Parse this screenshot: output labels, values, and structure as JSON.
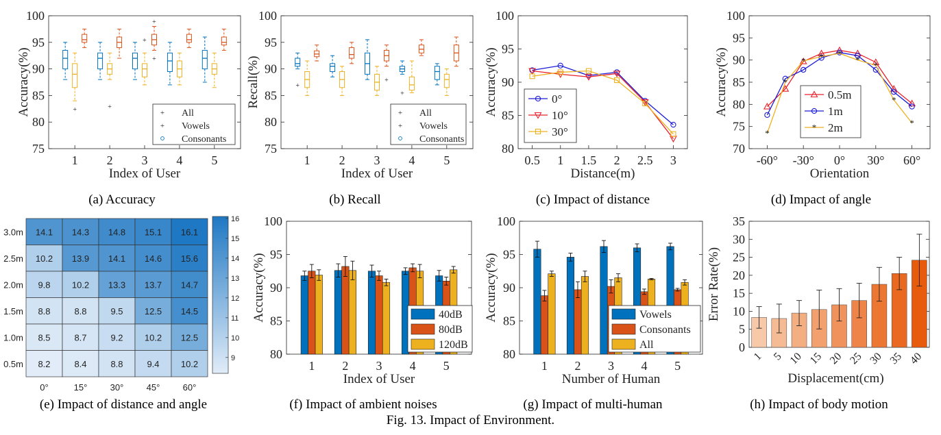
{
  "figure_caption": "Fig. 13.  Impact of Environment.",
  "colors": {
    "blue": "#0072BD",
    "orange": "#D95319",
    "yellow": "#EDB120",
    "red_line": "#E8202A",
    "blue_line": "#1B1BD6",
    "gold_line": "#EDB120",
    "heat_low": "#e1ecf8",
    "heat_high": "#1f78c3",
    "bar_light": "#f7c9a9",
    "bar_dark": "#e85b0c"
  },
  "chart_data": [
    {
      "id": "a",
      "type": "boxplot",
      "panel_title": "(a)  Accuracy",
      "xlabel": "Index of User",
      "ylabel": "Accuracy(%)",
      "ylim": [
        75,
        100
      ],
      "yticks": [
        "75",
        "80",
        "85",
        "90",
        "95",
        "100"
      ],
      "categories": [
        "1",
        "2",
        "3",
        "4",
        "5"
      ],
      "legend": [
        "All",
        "Vowels",
        "Consonants"
      ],
      "series": [
        {
          "name": "Consonants",
          "color": "blue",
          "boxes": [
            {
              "min": 88,
              "q1": 90,
              "med": 92,
              "q3": 93.5,
              "max": 95,
              "outliers": []
            },
            {
              "min": 88,
              "q1": 90,
              "med": 92,
              "q3": 93,
              "max": 95,
              "outliers": []
            },
            {
              "min": 88,
              "q1": 90,
              "med": 92,
              "q3": 93,
              "max": 95,
              "outliers": []
            },
            {
              "min": 87,
              "q1": 89.5,
              "med": 91.5,
              "q3": 93,
              "max": 95,
              "outliers": []
            },
            {
              "min": 87.5,
              "q1": 90,
              "med": 92,
              "q3": 93.5,
              "max": 96,
              "outliers": []
            }
          ]
        },
        {
          "name": "All",
          "color": "yellow",
          "boxes": [
            {
              "min": 84,
              "q1": 86.5,
              "med": 89,
              "q3": 91,
              "max": 93,
              "outliers": [
                82.5
              ]
            },
            {
              "min": 88,
              "q1": 89,
              "med": 90,
              "q3": 91,
              "max": 93,
              "outliers": [
                83
              ]
            },
            {
              "min": 87,
              "q1": 88.5,
              "med": 90,
              "q3": 91,
              "max": 93,
              "outliers": [
                95.5
              ]
            },
            {
              "min": 87,
              "q1": 88.5,
              "med": 90,
              "q3": 91.5,
              "max": 93,
              "outliers": []
            },
            {
              "min": 86.5,
              "q1": 89,
              "med": 90,
              "q3": 91,
              "max": 93,
              "outliers": []
            }
          ]
        },
        {
          "name": "Vowels",
          "color": "orange",
          "boxes": [
            {
              "min": 94,
              "q1": 95,
              "med": 95.5,
              "q3": 96.5,
              "max": 97.5,
              "outliers": []
            },
            {
              "min": 92,
              "q1": 94,
              "med": 95,
              "q3": 96,
              "max": 97.5,
              "outliers": []
            },
            {
              "min": 93.5,
              "q1": 94.5,
              "med": 95.5,
              "q3": 96.5,
              "max": 98,
              "outliers": [
                92,
                99
              ]
            },
            {
              "min": 94,
              "q1": 95,
              "med": 95.5,
              "q3": 96.5,
              "max": 97.5,
              "outliers": []
            },
            {
              "min": 93.5,
              "q1": 94.5,
              "med": 95,
              "q3": 96,
              "max": 97.5,
              "outliers": []
            }
          ]
        }
      ]
    },
    {
      "id": "b",
      "type": "boxplot",
      "panel_title": "(b)  Recall",
      "xlabel": "Index of User",
      "ylabel": "Recall(%)",
      "ylim": [
        75,
        100
      ],
      "yticks": [
        "75",
        "80",
        "85",
        "90",
        "95",
        "100"
      ],
      "categories": [
        "1",
        "2",
        "3",
        "4",
        "5"
      ],
      "legend": [
        "All",
        "Vowels",
        "Consonants"
      ],
      "series": [
        {
          "name": "Consonants",
          "color": "blue",
          "boxes": [
            {
              "min": 90,
              "q1": 90.5,
              "med": 91,
              "q3": 92,
              "max": 93,
              "outliers": [
                87
              ]
            },
            {
              "min": 88.5,
              "q1": 89.5,
              "med": 90.5,
              "q3": 91,
              "max": 92.5,
              "outliers": []
            },
            {
              "min": 88,
              "q1": 89,
              "med": 91,
              "q3": 93,
              "max": 95.5,
              "outliers": []
            },
            {
              "min": 89,
              "q1": 89.5,
              "med": 90,
              "q3": 90.5,
              "max": 91.5,
              "outliers": [
                85.5
              ]
            },
            {
              "min": 87,
              "q1": 88,
              "med": 89.5,
              "q3": 90.5,
              "max": 91,
              "outliers": []
            }
          ]
        },
        {
          "name": "All",
          "color": "yellow",
          "boxes": [
            {
              "min": 85,
              "q1": 86.5,
              "med": 88,
              "q3": 89.5,
              "max": 91.5,
              "outliers": []
            },
            {
              "min": 85,
              "q1": 86.5,
              "med": 88,
              "q3": 89.5,
              "max": 90.5,
              "outliers": []
            },
            {
              "min": 85,
              "q1": 86,
              "med": 87.5,
              "q3": 89,
              "max": 90.5,
              "outliers": []
            },
            {
              "min": 85.5,
              "q1": 86,
              "med": 87,
              "q3": 88.5,
              "max": 91.5,
              "outliers": []
            },
            {
              "min": 85,
              "q1": 86.5,
              "med": 88,
              "q3": 89,
              "max": 90,
              "outliers": []
            }
          ]
        },
        {
          "name": "Vowels",
          "color": "orange",
          "boxes": [
            {
              "min": 91.5,
              "q1": 92.3,
              "med": 92.8,
              "q3": 93.4,
              "max": 94.5,
              "outliers": []
            },
            {
              "min": 91,
              "q1": 92,
              "med": 92.7,
              "q3": 94,
              "max": 95,
              "outliers": []
            },
            {
              "min": 90.5,
              "q1": 91.5,
              "med": 92.5,
              "q3": 93.5,
              "max": 94.5,
              "outliers": [
                88
              ]
            },
            {
              "min": 92.5,
              "q1": 93,
              "med": 93.7,
              "q3": 94.5,
              "max": 95.5,
              "outliers": []
            },
            {
              "min": 90.5,
              "q1": 91.5,
              "med": 93,
              "q3": 94.5,
              "max": 96,
              "outliers": []
            }
          ]
        }
      ]
    },
    {
      "id": "c",
      "type": "line",
      "panel_title": "(c)  Impact of distance",
      "xlabel": "Distance(m)",
      "ylabel": "Accuracy(%)",
      "ylim": [
        80,
        100
      ],
      "xlim": [
        0.25,
        3.25
      ],
      "xticks": [
        "0.5",
        "1",
        "1.5",
        "2",
        "2.5",
        "3"
      ],
      "yticks": [
        "80",
        "85",
        "90",
        "95",
        "100"
      ],
      "x": [
        0.5,
        1,
        1.5,
        2,
        2.5,
        3
      ],
      "series": [
        {
          "name": "0°",
          "color": "blue_line",
          "marker": "circle",
          "values": [
            91.8,
            92.5,
            91.0,
            91.5,
            87.2,
            83.6
          ]
        },
        {
          "name": "10°",
          "color": "red_line",
          "marker": "triangle-down",
          "values": [
            91.7,
            91.2,
            90.8,
            91.3,
            87.0,
            81.5
          ]
        },
        {
          "name": "30°",
          "color": "gold_line",
          "marker": "square",
          "values": [
            90.9,
            91.5,
            91.7,
            90.3,
            86.8,
            82.2
          ]
        }
      ]
    },
    {
      "id": "d",
      "type": "line",
      "panel_title": "(d)  Impact of angle",
      "xlabel": "Orientation",
      "ylabel": "Accuracy(%)",
      "ylim": [
        70,
        100
      ],
      "xlim": [
        -75,
        75
      ],
      "xticks": [
        "-60°",
        "-30°",
        "0°",
        "30°",
        "60°"
      ],
      "yticks": [
        "70",
        "75",
        "80",
        "85",
        "90",
        "95",
        "100"
      ],
      "x": [
        -60,
        -45,
        -30,
        -15,
        0,
        15,
        30,
        45,
        60
      ],
      "series": [
        {
          "name": "0.5m",
          "color": "red_line",
          "marker": "triangle",
          "values": [
            79.5,
            83.5,
            89.7,
            91.5,
            92.2,
            91.5,
            89.5,
            83.5,
            80.2
          ]
        },
        {
          "name": "1m",
          "color": "blue_line",
          "marker": "circle",
          "values": [
            77.6,
            85.8,
            87.8,
            90.5,
            91.7,
            91.0,
            87.8,
            82.8,
            79.5
          ]
        },
        {
          "name": "2m",
          "color": "gold_line",
          "marker": "star",
          "values": [
            73.5,
            85.0,
            89.8,
            90.8,
            91.5,
            90.0,
            88.8,
            81.0,
            75.8
          ]
        }
      ]
    },
    {
      "id": "e",
      "type": "heatmap",
      "panel_title": "(e)  Impact of distance and angle",
      "rows": [
        "3.0m",
        "2.5m",
        "2.0m",
        "1.5m",
        "1.0m",
        "0.5m"
      ],
      "cols": [
        "0°",
        "15°",
        "30°",
        "45°",
        "60°"
      ],
      "values": [
        [
          14.1,
          14.3,
          14.8,
          15.1,
          16.1
        ],
        [
          10.2,
          13.9,
          14.1,
          14.6,
          15.6
        ],
        [
          9.8,
          10.2,
          13.3,
          13.7,
          14.7
        ],
        [
          8.8,
          8.8,
          9.5,
          12.5,
          14.5
        ],
        [
          8.5,
          8.7,
          9.2,
          10.2,
          12.5
        ],
        [
          8.2,
          8.4,
          8.8,
          9.4,
          10.2
        ]
      ],
      "labels": [
        [
          "14.1",
          "14.3",
          "14.8",
          "15.1",
          "16.1"
        ],
        [
          "10.2",
          "13.9",
          "14.1",
          "14.6",
          "15.6"
        ],
        [
          "9.8",
          "10.2",
          "13.3",
          "13.7",
          "14.7"
        ],
        [
          "8.8",
          "8.8",
          "9.5",
          "12.5",
          "14.5"
        ],
        [
          "8.5",
          "8.7",
          "9.2",
          "10.2",
          "12.5"
        ],
        [
          "8.2",
          "8.4",
          "8.8",
          "9.4",
          "10.2"
        ]
      ],
      "colorbar_ticks": [
        "9",
        "10",
        "11",
        "12",
        "13",
        "14",
        "15",
        "16"
      ],
      "colorbar_range": [
        8.2,
        16.1
      ]
    },
    {
      "id": "f",
      "type": "bar",
      "panel_title": "(f)  Impact of ambient noises",
      "xlabel": "Index of User",
      "ylabel": "Accuracy(%)",
      "ylim": [
        80,
        100
      ],
      "categories": [
        "1",
        "2",
        "3",
        "4",
        "5"
      ],
      "yticks": [
        "80",
        "85",
        "90",
        "95",
        "100"
      ],
      "series": [
        {
          "name": "40dB",
          "color": "blue",
          "values": [
            91.8,
            92.6,
            92.5,
            92.5,
            91.8
          ],
          "errors": [
            0.7,
            1.0,
            0.9,
            0.5,
            0.8
          ]
        },
        {
          "name": "80dB",
          "color": "orange",
          "values": [
            92.5,
            93.2,
            91.8,
            93.0,
            91.0
          ],
          "errors": [
            1.0,
            1.5,
            0.7,
            0.6,
            0.6
          ]
        },
        {
          "name": "120dB",
          "color": "yellow",
          "values": [
            91.9,
            92.6,
            90.8,
            92.5,
            92.7
          ],
          "errors": [
            0.8,
            1.4,
            0.5,
            1.0,
            0.5
          ]
        }
      ]
    },
    {
      "id": "g",
      "type": "bar",
      "panel_title": "(g)  Impact of multi-human",
      "xlabel": "Number of Human",
      "ylabel": "Accuracy(%)",
      "ylim": [
        80,
        100
      ],
      "categories": [
        "1",
        "2",
        "3",
        "4",
        "5"
      ],
      "yticks": [
        "80",
        "85",
        "90",
        "95",
        "100"
      ],
      "series": [
        {
          "name": "Vowels",
          "color": "blue",
          "values": [
            95.8,
            94.6,
            96.2,
            96.0,
            96.2
          ],
          "errors": [
            1.2,
            0.6,
            0.9,
            0.6,
            0.5
          ]
        },
        {
          "name": "Consonants",
          "color": "orange",
          "values": [
            88.8,
            89.7,
            90.2,
            89.4,
            89.7
          ],
          "errors": [
            0.8,
            1.2,
            1.0,
            0.4,
            0.2
          ]
        },
        {
          "name": "All",
          "color": "yellow",
          "values": [
            92.1,
            91.7,
            91.5,
            91.3,
            90.8
          ],
          "errors": [
            0.4,
            0.8,
            0.6,
            0.1,
            0.4
          ]
        }
      ]
    },
    {
      "id": "h",
      "type": "bar",
      "panel_title": "(h)  Impact of body motion",
      "xlabel": "Displacement(cm)",
      "ylabel": "Error Rate(%)",
      "ylim": [
        0,
        35
      ],
      "categories": [
        "1",
        "5",
        "10",
        "15",
        "20",
        "25",
        "30",
        "35",
        "40"
      ],
      "yticks": [
        "0",
        "5",
        "10",
        "15",
        "20",
        "25",
        "30",
        "35"
      ],
      "values": [
        8.3,
        8.0,
        9.5,
        10.5,
        11.8,
        13.0,
        17.5,
        20.5,
        24.2
      ],
      "errors": [
        3.0,
        4.0,
        3.5,
        5.4,
        4.5,
        4.8,
        4.7,
        4.5,
        7.2
      ]
    }
  ]
}
